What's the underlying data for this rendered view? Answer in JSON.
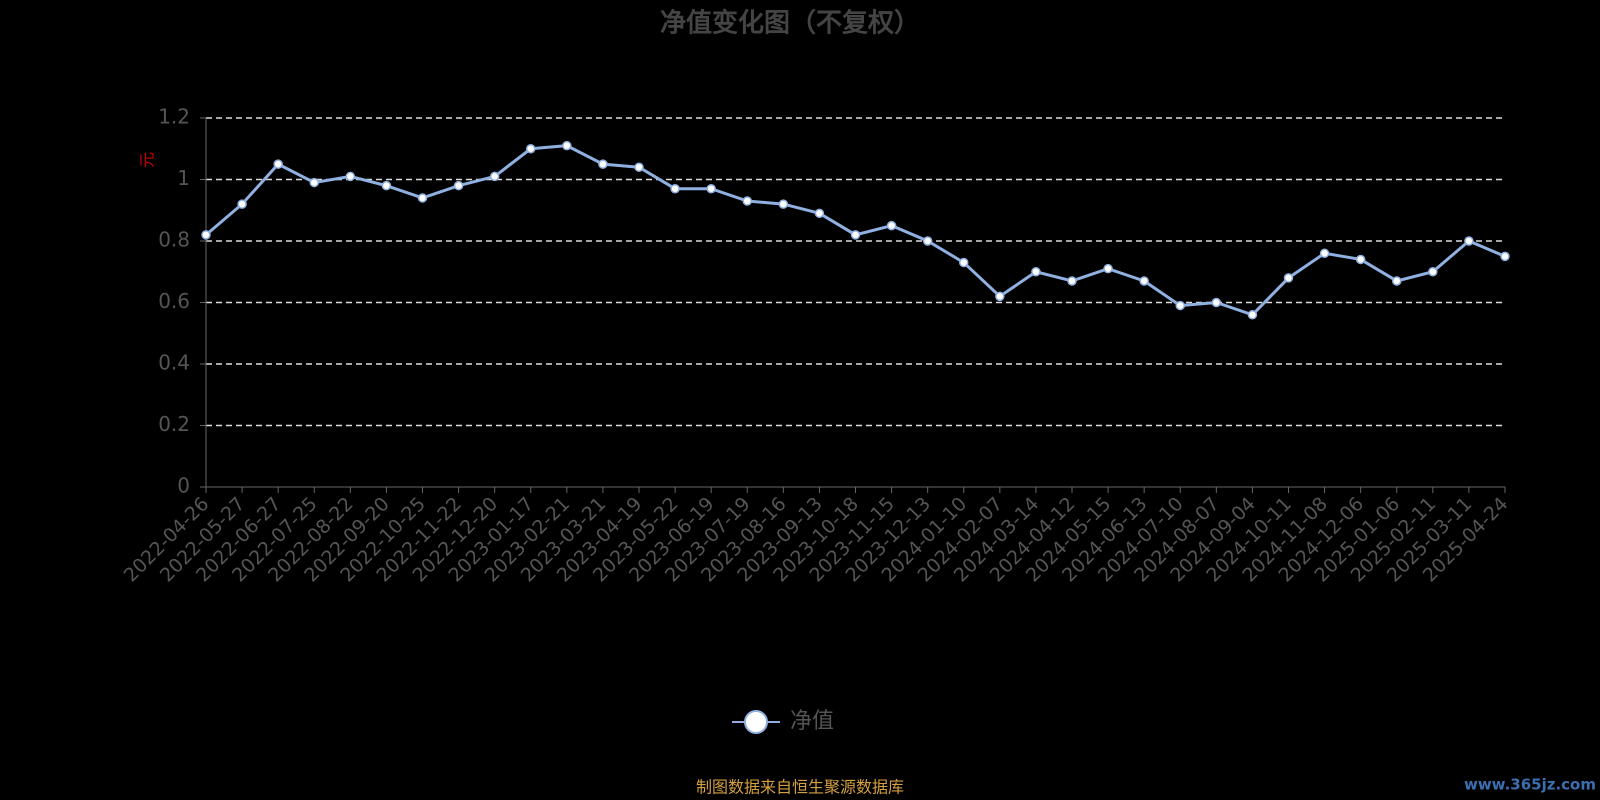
{
  "chart_data": {
    "type": "line",
    "title": "净值变化图（不复权）",
    "y_label": "元",
    "categories": [
      "2022-04-26",
      "2022-05-27",
      "2022-06-27",
      "2022-07-25",
      "2022-08-22",
      "2022-09-20",
      "2022-10-25",
      "2022-11-22",
      "2022-12-20",
      "2023-01-17",
      "2023-02-21",
      "2023-03-21",
      "2023-04-19",
      "2023-05-22",
      "2023-06-19",
      "2023-07-19",
      "2023-08-16",
      "2023-09-13",
      "2023-10-18",
      "2023-11-15",
      "2023-12-13",
      "2024-01-10",
      "2024-02-07",
      "2024-03-14",
      "2024-04-12",
      "2024-05-15",
      "2024-06-13",
      "2024-07-10",
      "2024-08-07",
      "2024-09-04",
      "2024-10-11",
      "2024-11-08",
      "2024-12-06",
      "2025-01-06",
      "2025-02-11",
      "2025-03-11",
      "2025-04-24"
    ],
    "series": [
      {
        "name": "净值",
        "color": "#8fb0e0",
        "values": [
          0.82,
          0.92,
          1.05,
          0.99,
          1.01,
          0.98,
          0.94,
          0.98,
          1.01,
          1.1,
          1.11,
          1.05,
          1.04,
          0.97,
          0.97,
          0.93,
          0.92,
          0.89,
          0.82,
          0.85,
          0.8,
          0.73,
          0.62,
          0.7,
          0.67,
          0.71,
          0.67,
          0.59,
          0.6,
          0.56,
          0.68,
          0.76,
          0.74,
          0.67,
          0.7,
          0.8,
          0.75
        ]
      }
    ],
    "ylim": [
      0,
      1.2
    ],
    "yticks": [
      0,
      0.2,
      0.4,
      0.6,
      0.8,
      1,
      1.2
    ],
    "grid": true,
    "source": "制图数据来自恒生聚源数据库",
    "watermark": "www.365jz.com"
  }
}
